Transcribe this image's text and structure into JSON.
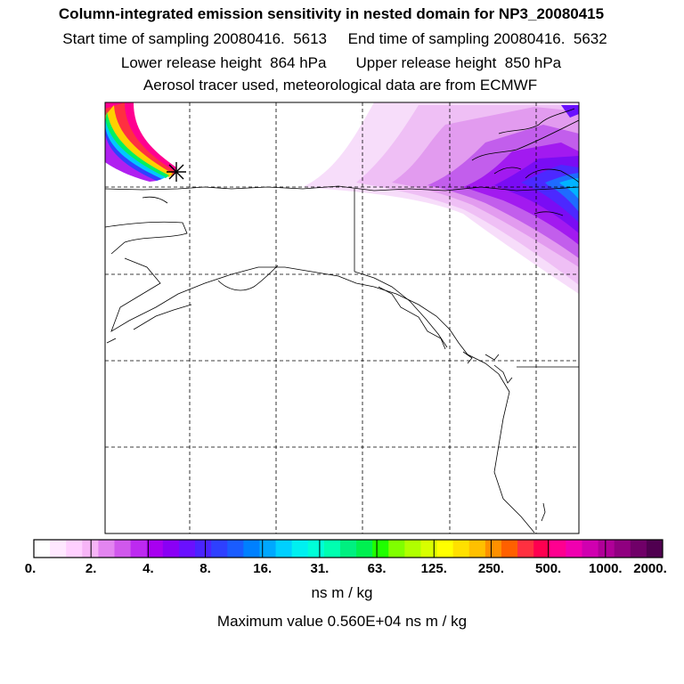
{
  "header": {
    "title": "Column-integrated emission sensitivity in nested domain for NP3_20080415",
    "sampling_line": "Start time of sampling 20080416.  5613     End time of sampling 20080416.  5632",
    "release_line": "Lower release height  864 hPa       Upper release height  850 hPa",
    "tracer_line": "Aerosol tracer used, meteorological data are from ECMWF"
  },
  "map": {
    "region": "Alaska / northwestern North America",
    "release_marker_icon": "asterisk-icon"
  },
  "colorbar": {
    "tick_labels": [
      "0.",
      "2.",
      "4.",
      "8.",
      "16.",
      "31.",
      "63.",
      "125.",
      "250.",
      "500.",
      "1000.",
      "2000."
    ],
    "colors": [
      "#ffffff",
      "#ffe8ff",
      "#ffd0ff",
      "#f7b5f7",
      "#e385f0",
      "#d058ec",
      "#bd2af0",
      "#a800f0",
      "#8a00f5",
      "#6a10ff",
      "#4a24ff",
      "#2e40ff",
      "#1a5cff",
      "#0080ff",
      "#00a8ff",
      "#00d0ff",
      "#00f0f0",
      "#00ffd8",
      "#00ffb0",
      "#00f080",
      "#00f050",
      "#20ff00",
      "#80ff00",
      "#b0ff00",
      "#d8ff00",
      "#ffff00",
      "#ffe000",
      "#ffc000",
      "#ff9000",
      "#ff6000",
      "#ff3040",
      "#ff0050",
      "#ff0090",
      "#f000b0",
      "#d000b0",
      "#b00098",
      "#900080",
      "#700068",
      "#500050"
    ],
    "units": "ns m / kg"
  },
  "footer": {
    "max_value_line": "Maximum value  0.560E+04 ns m / kg"
  }
}
